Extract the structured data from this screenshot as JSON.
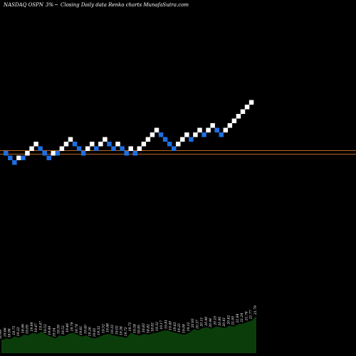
{
  "header": {
    "ticker": "NASDAQ OSPN",
    "change": "3%",
    "description": "Closing Daily data  Renko  charts MunafaSutra.com"
  },
  "colors": {
    "background": "#000000",
    "up_brick": "#ffffff",
    "down_brick": "#1f6fe0",
    "reference_line": "#b8651f",
    "volume": "#0b3d0b",
    "text": "#ffffff"
  },
  "chart_data": {
    "type": "renko",
    "bricks": [
      {
        "d": "down",
        "level": 0
      },
      {
        "d": "down",
        "level": -1
      },
      {
        "d": "down",
        "level": -2
      },
      {
        "d": "up",
        "level": -1
      },
      {
        "d": "down",
        "level": -1
      },
      {
        "d": "up",
        "level": 0
      },
      {
        "d": "up",
        "level": 1
      },
      {
        "d": "up",
        "level": 2
      },
      {
        "d": "down",
        "level": 1
      },
      {
        "d": "down",
        "level": 0
      },
      {
        "d": "down",
        "level": -1
      },
      {
        "d": "up",
        "level": 0
      },
      {
        "d": "down",
        "level": 0
      },
      {
        "d": "up",
        "level": 1
      },
      {
        "d": "up",
        "level": 2
      },
      {
        "d": "up",
        "level": 3
      },
      {
        "d": "down",
        "level": 2
      },
      {
        "d": "down",
        "level": 1
      },
      {
        "d": "down",
        "level": 0
      },
      {
        "d": "up",
        "level": 1
      },
      {
        "d": "up",
        "level": 2
      },
      {
        "d": "down",
        "level": 1
      },
      {
        "d": "up",
        "level": 2
      },
      {
        "d": "up",
        "level": 3
      },
      {
        "d": "down",
        "level": 2
      },
      {
        "d": "down",
        "level": 1
      },
      {
        "d": "up",
        "level": 2
      },
      {
        "d": "down",
        "level": 1
      },
      {
        "d": "down",
        "level": 0
      },
      {
        "d": "up",
        "level": 1
      },
      {
        "d": "down",
        "level": 0
      },
      {
        "d": "up",
        "level": 1
      },
      {
        "d": "up",
        "level": 2
      },
      {
        "d": "up",
        "level": 3
      },
      {
        "d": "up",
        "level": 4
      },
      {
        "d": "up",
        "level": 5
      },
      {
        "d": "down",
        "level": 4
      },
      {
        "d": "down",
        "level": 3
      },
      {
        "d": "down",
        "level": 2
      },
      {
        "d": "down",
        "level": 1
      },
      {
        "d": "up",
        "level": 2
      },
      {
        "d": "up",
        "level": 3
      },
      {
        "d": "up",
        "level": 4
      },
      {
        "d": "down",
        "level": 3
      },
      {
        "d": "up",
        "level": 4
      },
      {
        "d": "up",
        "level": 5
      },
      {
        "d": "down",
        "level": 4
      },
      {
        "d": "up",
        "level": 5
      },
      {
        "d": "up",
        "level": 6
      },
      {
        "d": "down",
        "level": 5
      },
      {
        "d": "down",
        "level": 4
      },
      {
        "d": "up",
        "level": 5
      },
      {
        "d": "up",
        "level": 6
      },
      {
        "d": "up",
        "level": 7
      },
      {
        "d": "up",
        "level": 8
      },
      {
        "d": "up",
        "level": 9
      },
      {
        "d": "up",
        "level": 10
      },
      {
        "d": "up",
        "level": 11
      }
    ],
    "reference_line_level": -0.3,
    "volume": [
      {
        "label": "20.69",
        "v": 0.35
      },
      {
        "label": "19.66",
        "v": 0.4
      },
      {
        "label": "18.96",
        "v": 0.38
      },
      {
        "label": "18.75",
        "v": 0.45
      },
      {
        "label": "19.22",
        "v": 0.42
      },
      {
        "label": "18.96",
        "v": 0.5
      },
      {
        "label": "19.09",
        "v": 0.48
      },
      {
        "label": "19.64",
        "v": 0.55
      },
      {
        "label": "19.47",
        "v": 0.52
      },
      {
        "label": "19.47",
        "v": 0.58
      },
      {
        "label": "19.52",
        "v": 0.5
      },
      {
        "label": "19.49",
        "v": 0.45
      },
      {
        "label": "19.54",
        "v": 0.4
      },
      {
        "label": "19.59",
        "v": 0.48
      },
      {
        "label": "19.52",
        "v": 0.46
      },
      {
        "label": "19.46",
        "v": 0.52
      },
      {
        "label": "19.79",
        "v": 0.55
      },
      {
        "label": "19.78",
        "v": 0.5
      },
      {
        "label": "19.61",
        "v": 0.45
      },
      {
        "label": "19.40",
        "v": 0.48
      },
      {
        "label": "19.26",
        "v": 0.42
      },
      {
        "label": "19.81",
        "v": 0.4
      },
      {
        "label": "19.32",
        "v": 0.45
      },
      {
        "label": "19.52",
        "v": 0.5
      },
      {
        "label": "19.68",
        "v": 0.52
      },
      {
        "label": "19.33",
        "v": 0.48
      },
      {
        "label": "19.02",
        "v": 0.46
      },
      {
        "label": "19.38",
        "v": 0.44
      },
      {
        "label": "19.72",
        "v": 0.42
      },
      {
        "label": "19.75",
        "v": 0.55
      },
      {
        "label": "19.58",
        "v": 0.5
      },
      {
        "label": "18.95",
        "v": 0.48
      },
      {
        "label": "18.83",
        "v": 0.52
      },
      {
        "label": "18.82",
        "v": 0.5
      },
      {
        "label": "18.92",
        "v": 0.54
      },
      {
        "label": "19.32",
        "v": 0.56
      },
      {
        "label": "19.17",
        "v": 0.6
      },
      {
        "label": "19.81",
        "v": 0.62
      },
      {
        "label": "19.49",
        "v": 0.58
      },
      {
        "label": "19.63",
        "v": 0.55
      },
      {
        "label": "19.25",
        "v": 0.52
      },
      {
        "label": "19.08",
        "v": 0.5
      },
      {
        "label": "19.12",
        "v": 0.55
      },
      {
        "label": "20.93",
        "v": 0.65
      },
      {
        "label": "20.37",
        "v": 0.62
      },
      {
        "label": "20.11",
        "v": 0.68
      },
      {
        "label": "20.90",
        "v": 0.7
      },
      {
        "label": "20.44",
        "v": 0.66
      },
      {
        "label": "20.10",
        "v": 0.72
      },
      {
        "label": "20.90",
        "v": 0.7
      },
      {
        "label": "20.61",
        "v": 0.68
      },
      {
        "label": "20.82",
        "v": 0.74
      },
      {
        "label": "21.00",
        "v": 0.72
      },
      {
        "label": "21.64",
        "v": 0.78
      },
      {
        "label": "21.24",
        "v": 0.8
      },
      {
        "label": "21.76",
        "v": 0.84
      },
      {
        "label": "21.77",
        "v": 0.88
      },
      {
        "label": "21.79",
        "v": 1.0
      }
    ]
  }
}
